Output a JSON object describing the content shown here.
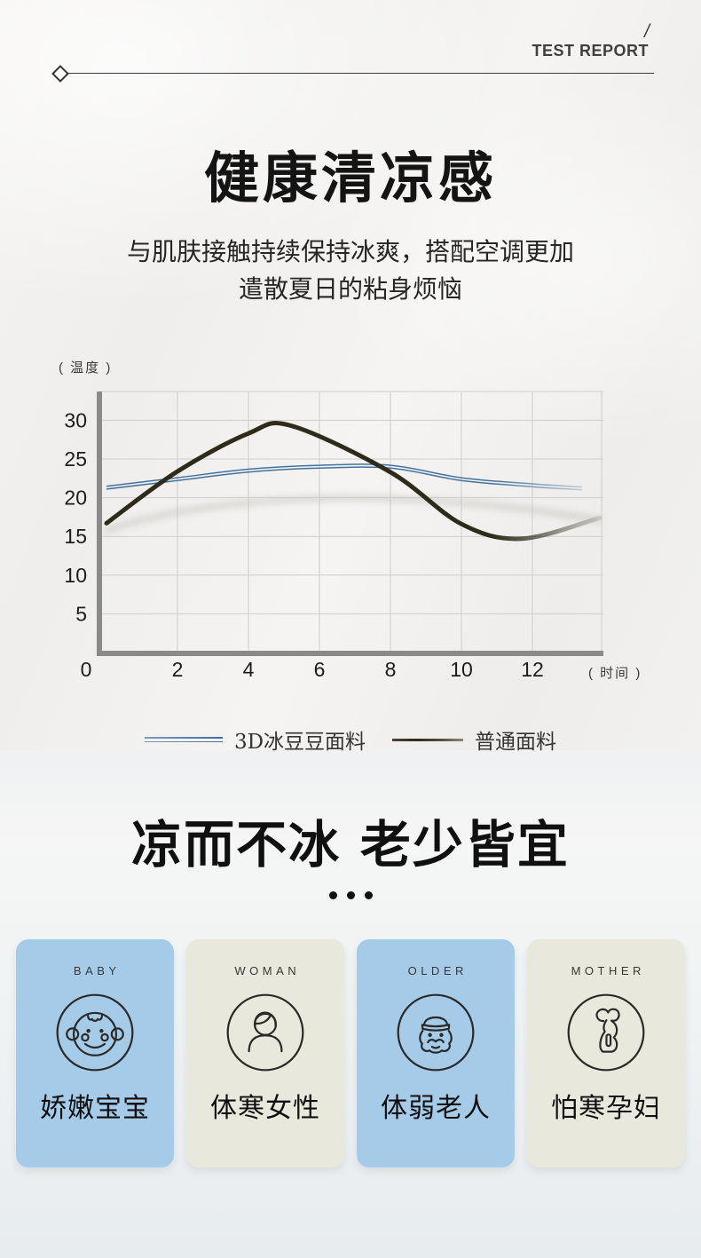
{
  "header": {
    "slash": "/",
    "brand": "TEST REPORT"
  },
  "hero": {
    "title": "健康清凉感",
    "subtitle_line1": "与肌肤接触持续保持冰爽，搭配空调更加",
    "subtitle_line2": "遣散夏日的粘身烦恼"
  },
  "chart_data": {
    "type": "line",
    "title": "",
    "ylabel": "( 温度 )",
    "xlabel": "( 时间 )",
    "y_ticks": [
      30,
      25,
      20,
      15,
      10,
      5
    ],
    "x_ticks": [
      0,
      2,
      4,
      6,
      8,
      10,
      12
    ],
    "ylim": [
      0,
      33
    ],
    "xlim": [
      0,
      14
    ],
    "grid": true,
    "legend_position": "bottom",
    "colors": {
      "grid": "#cdcdcd",
      "axis": "#8a8a8a",
      "tick_text": "#1c1c1c"
    },
    "series": [
      {
        "name": "3D冰豆豆面料",
        "color": "#44729f",
        "style": "double-line",
        "x": [
          0,
          2,
          4,
          6,
          8,
          10,
          12,
          13.4
        ],
        "values": [
          21.3,
          22.4,
          23.5,
          24,
          24,
          22.4,
          21.6,
          21.2
        ]
      },
      {
        "name": "普通面料",
        "color": "#2e2b1a",
        "style": "solid",
        "x": [
          0,
          2,
          4,
          5.2,
          8,
          10,
          11.7,
          13.9
        ],
        "values": [
          16.7,
          23.4,
          28.3,
          29.3,
          23.3,
          16.6,
          14.7,
          17.4
        ]
      }
    ]
  },
  "legend": [
    {
      "label": "3D冰豆豆面料",
      "color": "#44729f"
    },
    {
      "label": "普通面料",
      "color": "#2e2b1a"
    }
  ],
  "section2": {
    "title": "凉而不冰 老少皆宜",
    "dots": "•••"
  },
  "cards": [
    {
      "caption": "BABY",
      "label": "娇嫩宝宝",
      "bg": "#a6cbe8",
      "icon": "baby-face-icon"
    },
    {
      "caption": "WOMAN",
      "label": "体寒女性",
      "bg": "#e9e8dc",
      "icon": "woman-icon"
    },
    {
      "caption": "OLDER",
      "label": "体弱老人",
      "bg": "#a6cbe8",
      "icon": "older-man-icon"
    },
    {
      "caption": "MOTHER",
      "label": "怕寒孕妇",
      "bg": "#e9e8dc",
      "icon": "pregnant-woman-icon"
    }
  ]
}
